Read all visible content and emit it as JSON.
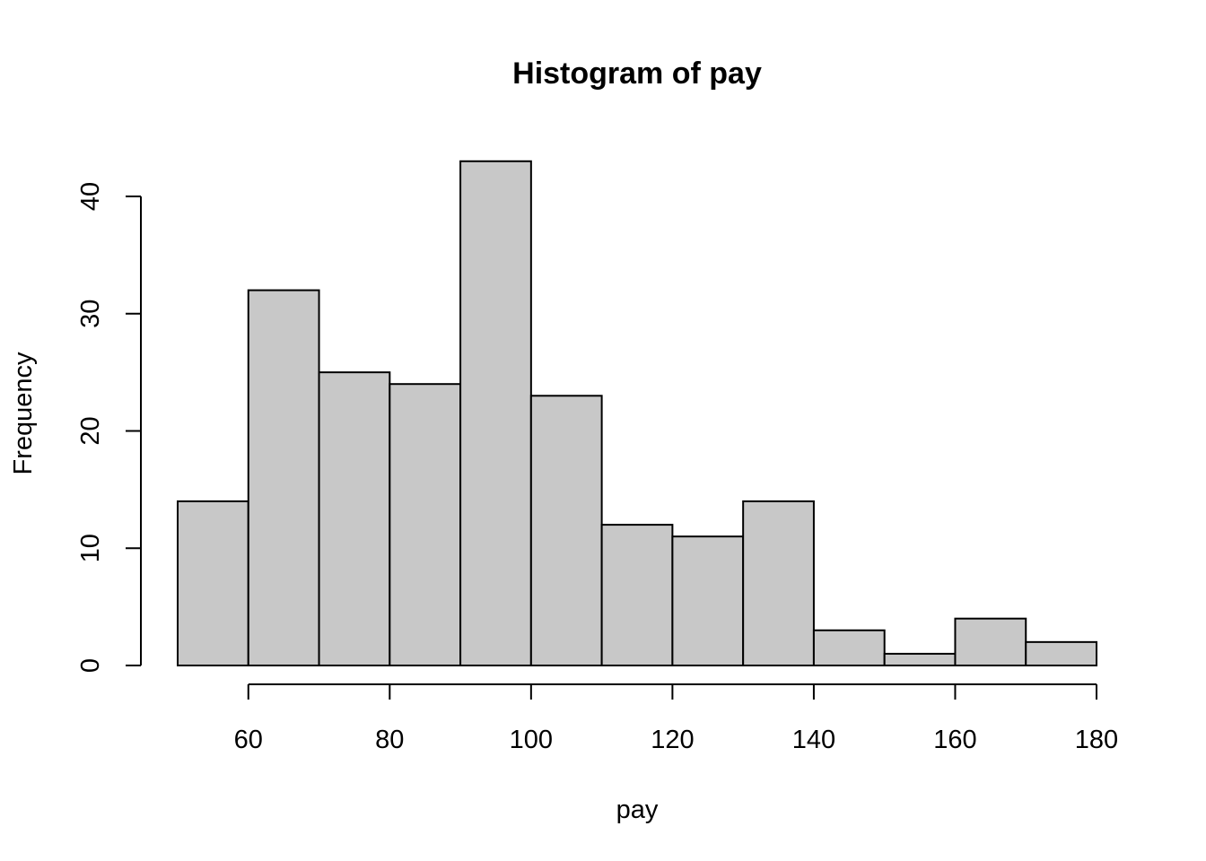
{
  "chart_data": {
    "type": "bar",
    "title": "Histogram of pay",
    "xlabel": "pay",
    "ylabel": "Frequency",
    "bin_edges": [
      50,
      60,
      70,
      80,
      90,
      100,
      110,
      120,
      130,
      140,
      150,
      160,
      170,
      180
    ],
    "values": [
      14,
      32,
      25,
      24,
      43,
      23,
      12,
      11,
      14,
      3,
      1,
      4,
      2
    ],
    "xlim": [
      50,
      180
    ],
    "ylim": [
      0,
      43
    ],
    "x_ticks": [
      60,
      80,
      100,
      120,
      140,
      160,
      180
    ],
    "x_tick_labels": [
      "60",
      "80",
      "100",
      "120",
      "140",
      "160",
      "180"
    ],
    "y_ticks": [
      0,
      10,
      20,
      30,
      40
    ],
    "y_tick_labels": [
      "0",
      "10",
      "20",
      "30",
      "40"
    ],
    "grid": false,
    "bar_color": "#c8c8c8",
    "edge_color": "#000000"
  }
}
